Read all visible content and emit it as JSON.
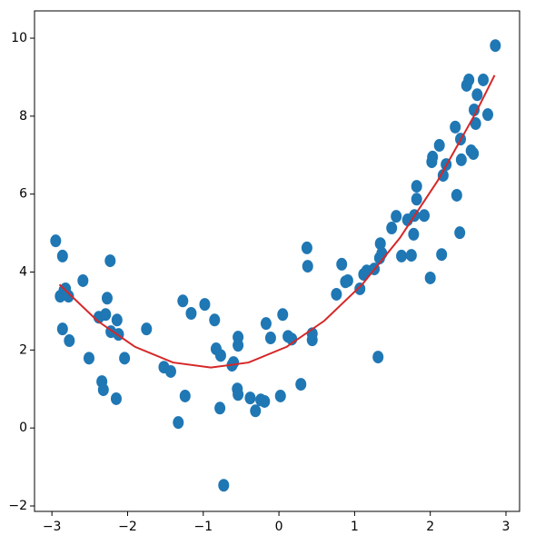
{
  "chart_data": {
    "type": "scatter",
    "xlim": [
      -3.23,
      3.18
    ],
    "ylim": [
      -2.14,
      10.7
    ],
    "xticks": [
      {
        "value": -3,
        "label": "−3"
      },
      {
        "value": -2,
        "label": "−2"
      },
      {
        "value": -1,
        "label": "−1"
      },
      0,
      1,
      2,
      3
    ],
    "yticks": [
      {
        "value": -2,
        "label": "−2"
      },
      0,
      2,
      4,
      6,
      8,
      10
    ],
    "series": [
      {
        "type": "scatter",
        "color": "#1f77b4",
        "x": [
          -2.95,
          -2.86,
          -2.84,
          -2.89,
          -2.82,
          -2.78,
          -2.86,
          -2.77,
          -2.59,
          -2.51,
          -2.38,
          -2.34,
          -2.32,
          -2.29,
          -2.27,
          -2.23,
          -2.22,
          -2.15,
          -2.14,
          -2.12,
          -2.04,
          -1.75,
          -1.52,
          -1.43,
          -1.33,
          -1.27,
          -1.24,
          -1.16,
          -0.98,
          -0.85,
          -0.83,
          -0.77,
          -0.73,
          -0.78,
          -0.62,
          -0.6,
          -0.54,
          -0.54,
          -0.54,
          -0.55,
          -0.38,
          -0.31,
          -0.24,
          -0.19,
          -0.17,
          -0.11,
          0.02,
          0.05,
          0.12,
          0.17,
          0.29,
          0.37,
          0.38,
          0.44,
          0.44,
          0.76,
          0.83,
          0.88,
          0.91,
          1.07,
          1.12,
          1.16,
          1.26,
          1.31,
          1.33,
          1.34,
          1.36,
          1.49,
          1.55,
          1.62,
          1.7,
          1.75,
          1.78,
          1.79,
          1.82,
          1.82,
          1.92,
          2.0,
          2.02,
          2.03,
          2.12,
          2.15,
          2.17,
          2.21,
          2.33,
          2.35,
          2.39,
          2.4,
          2.41,
          2.48,
          2.51,
          2.54,
          2.57,
          2.58,
          2.6,
          2.62,
          2.7,
          2.76,
          2.86
        ],
        "values": [
          4.8,
          4.41,
          3.53,
          3.38,
          3.57,
          3.38,
          2.54,
          2.24,
          3.78,
          1.79,
          2.84,
          1.19,
          0.98,
          2.91,
          3.33,
          4.29,
          2.47,
          0.75,
          2.77,
          2.4,
          1.79,
          2.54,
          1.56,
          1.45,
          0.14,
          3.26,
          0.82,
          2.94,
          3.17,
          2.77,
          2.03,
          1.86,
          -1.47,
          0.51,
          1.61,
          1.68,
          2.33,
          2.12,
          0.86,
          1.0,
          0.77,
          0.44,
          0.72,
          0.68,
          2.68,
          2.31,
          0.82,
          2.91,
          2.35,
          2.28,
          1.12,
          4.62,
          4.15,
          2.26,
          2.42,
          3.43,
          4.2,
          3.75,
          3.78,
          3.57,
          3.94,
          4.03,
          4.08,
          1.82,
          4.36,
          4.73,
          4.48,
          5.13,
          5.43,
          4.41,
          5.34,
          4.43,
          4.97,
          5.45,
          5.87,
          6.2,
          5.45,
          3.85,
          6.83,
          6.95,
          7.25,
          4.45,
          6.48,
          6.76,
          7.72,
          5.97,
          5.01,
          7.41,
          6.88,
          8.79,
          8.93,
          7.11,
          7.04,
          8.16,
          7.81,
          8.55,
          8.93,
          8.04,
          9.81
        ]
      },
      {
        "type": "line",
        "color": "#d62728",
        "x": [
          -2.9,
          -2.4,
          -1.9,
          -1.4,
          -0.9,
          -0.4,
          0.1,
          0.6,
          1.1,
          1.6,
          2.1,
          2.6,
          2.85
        ],
        "values": [
          3.68,
          2.75,
          2.08,
          1.68,
          1.55,
          1.68,
          2.08,
          2.75,
          3.68,
          4.88,
          6.35,
          8.08,
          9.05
        ]
      }
    ]
  }
}
